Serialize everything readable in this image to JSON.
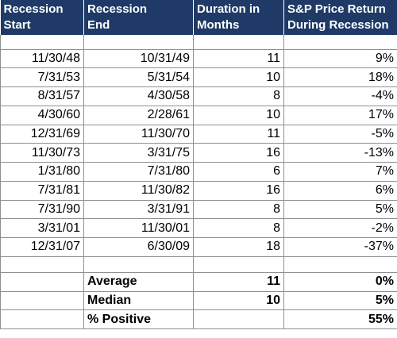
{
  "headers": {
    "start": [
      "Recession",
      "Start"
    ],
    "end": [
      "Recession",
      "End"
    ],
    "duration": [
      "Duration in",
      "Months"
    ],
    "return": [
      "S&P Price Return",
      "During Recession"
    ]
  },
  "rows": [
    {
      "start": "11/30/48",
      "end": "10/31/49",
      "duration": "11",
      "return": "9%"
    },
    {
      "start": "7/31/53",
      "end": "5/31/54",
      "duration": "10",
      "return": "18%"
    },
    {
      "start": "8/31/57",
      "end": "4/30/58",
      "duration": "8",
      "return": "-4%"
    },
    {
      "start": "4/30/60",
      "end": "2/28/61",
      "duration": "10",
      "return": "17%"
    },
    {
      "start": "12/31/69",
      "end": "11/30/70",
      "duration": "11",
      "return": "-5%"
    },
    {
      "start": "11/30/73",
      "end": "3/31/75",
      "duration": "16",
      "return": "-13%"
    },
    {
      "start": "1/31/80",
      "end": "7/31/80",
      "duration": "6",
      "return": "7%"
    },
    {
      "start": "7/31/81",
      "end": "11/30/82",
      "duration": "16",
      "return": "6%"
    },
    {
      "start": "7/31/90",
      "end": "3/31/91",
      "duration": "8",
      "return": "5%"
    },
    {
      "start": "3/31/01",
      "end": "11/30/01",
      "duration": "8",
      "return": "-2%"
    },
    {
      "start": "12/31/07",
      "end": "6/30/09",
      "duration": "18",
      "return": "-37%"
    }
  ],
  "summary": {
    "average": {
      "label": "Average",
      "duration": "11",
      "return": "0%"
    },
    "median": {
      "label": "Median",
      "duration": "10",
      "return": "5%"
    },
    "positive": {
      "label": "% Positive",
      "return": "55%"
    }
  }
}
